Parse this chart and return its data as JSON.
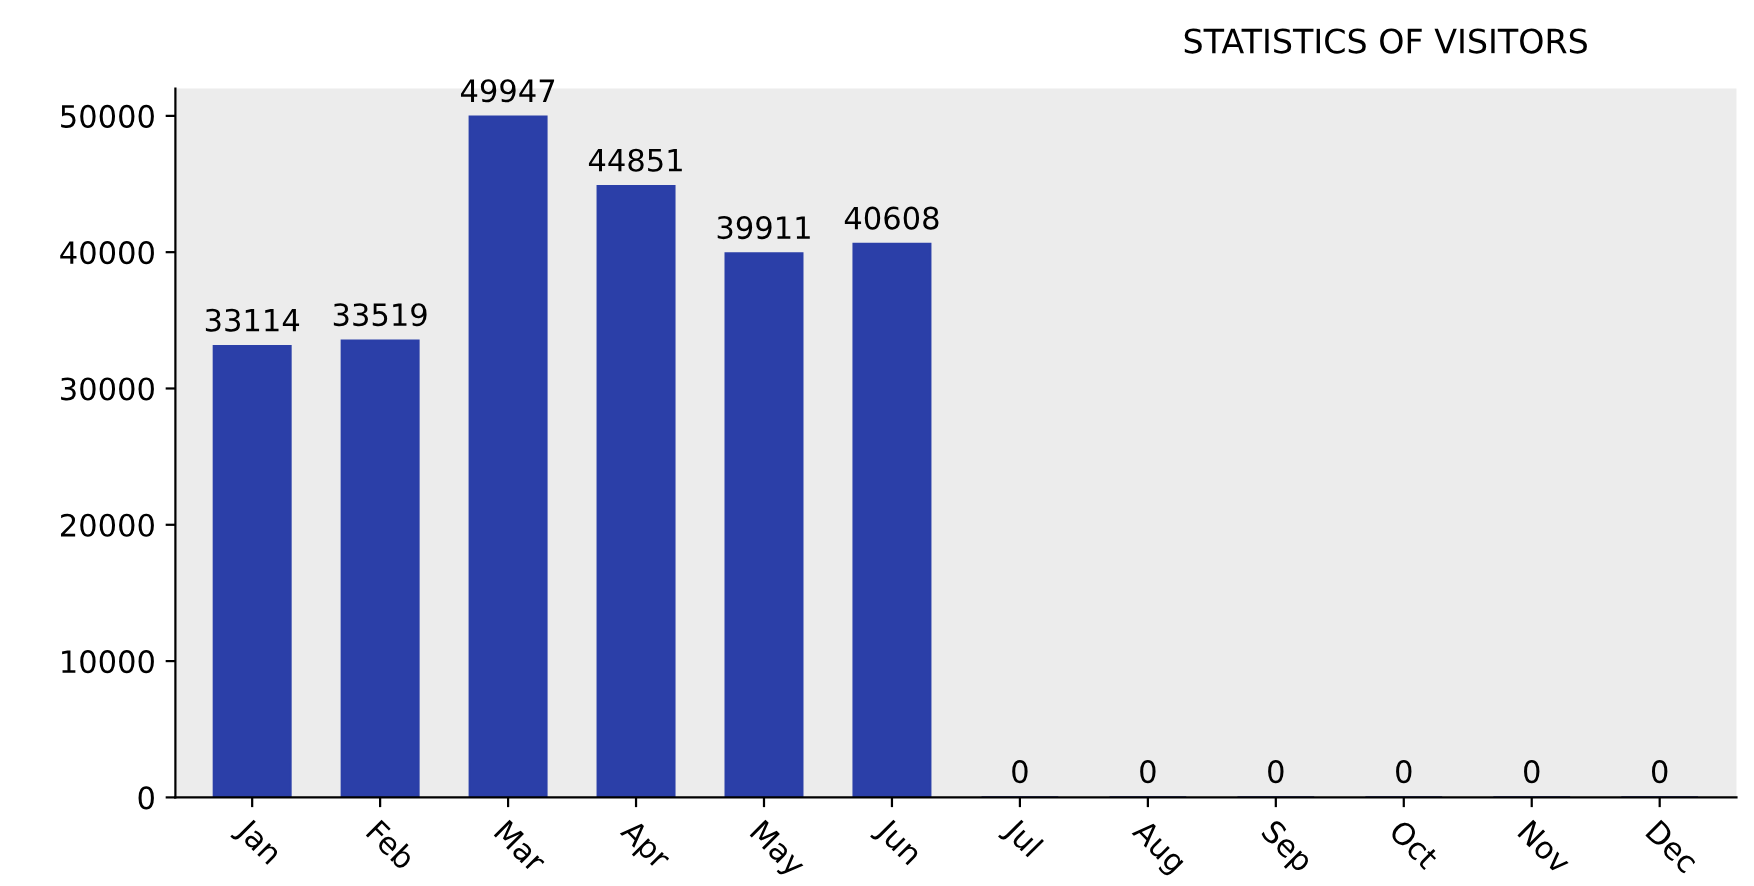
{
  "chart_data": {
    "type": "bar",
    "title": "STATISTICS OF VISITORS",
    "categories": [
      "Jan",
      "Feb",
      "Mar",
      "Apr",
      "May",
      "Jun",
      "Jul",
      "Aug",
      "Sep",
      "Oct",
      "Nov",
      "Dec"
    ],
    "values": [
      33114,
      33519,
      49947,
      44851,
      39911,
      40608,
      0,
      0,
      0,
      0,
      0,
      0
    ],
    "color": "#2b3fa8",
    "ylim": [
      0,
      52000
    ],
    "yticks": [
      0,
      10000,
      20000,
      30000,
      40000,
      50000
    ],
    "data_labels": true,
    "grid": false
  }
}
